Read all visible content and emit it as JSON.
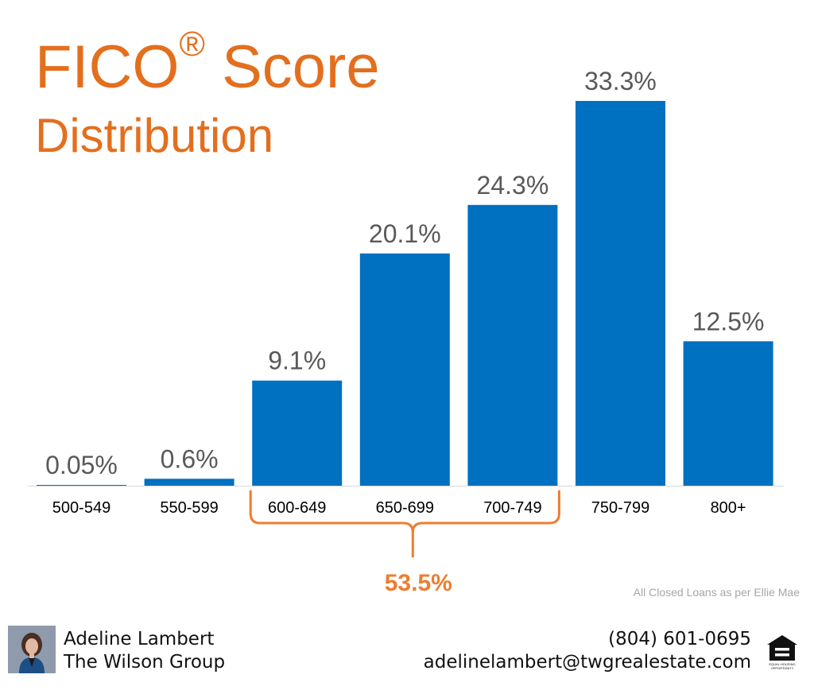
{
  "title": {
    "line1": "FICO",
    "registered": "®",
    "line1_rest": " Score",
    "line2": "Distribution"
  },
  "chart_data": {
    "type": "bar",
    "categories": [
      "500-549",
      "550-599",
      "600-649",
      "650-699",
      "700-749",
      "750-799",
      "800+"
    ],
    "values": [
      0.05,
      0.6,
      9.1,
      20.1,
      24.3,
      33.3,
      12.5
    ],
    "value_labels": [
      "0.05%",
      "0.6%",
      "9.1%",
      "20.1%",
      "24.3%",
      "33.3%",
      "12.5%"
    ],
    "ylim": [
      0,
      33.3
    ],
    "grid": false,
    "bar_color": "#0070c0",
    "bracket": {
      "from_category": "600-649",
      "to_category": "700-749",
      "label": "53.5%",
      "color": "#ed7d31"
    }
  },
  "source": "All Closed Loans as per Ellie Mae",
  "footer": {
    "agent_name": "Adeline Lambert",
    "company": "The Wilson Group",
    "phone": "(804) 601-0695",
    "email": "adelinelambert@twgrealestate.com",
    "eho_text": "EQUAL HOUSING OPPORTUNITY"
  }
}
